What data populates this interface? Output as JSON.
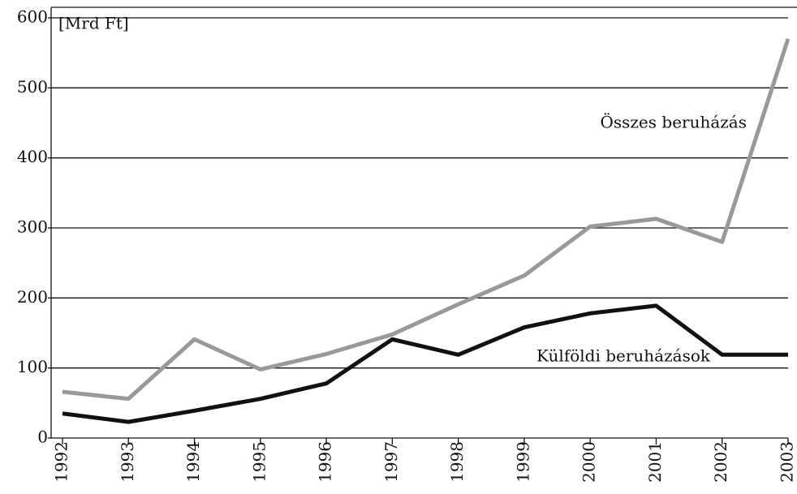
{
  "chart_data": {
    "type": "line",
    "y_label": "[Mrd Ft]",
    "categories": [
      "1992",
      "1993",
      "1994",
      "1995",
      "1996",
      "1997",
      "1998",
      "1999",
      "2000",
      "2001",
      "2002",
      "2003"
    ],
    "series": [
      {
        "name": "Összes beruházás",
        "color": "#999999",
        "values": [
          66,
          56,
          141,
          98,
          120,
          148,
          191,
          232,
          302,
          313,
          280,
          570
        ]
      },
      {
        "name": "Külföldi beruházások",
        "color": "#111111",
        "values": [
          35,
          23,
          39,
          56,
          78,
          141,
          119,
          158,
          178,
          189,
          119,
          119
        ]
      }
    ],
    "ylim": [
      0,
      600
    ],
    "yticks": [
      0,
      100,
      200,
      300,
      400,
      500,
      600
    ],
    "grid": true
  }
}
